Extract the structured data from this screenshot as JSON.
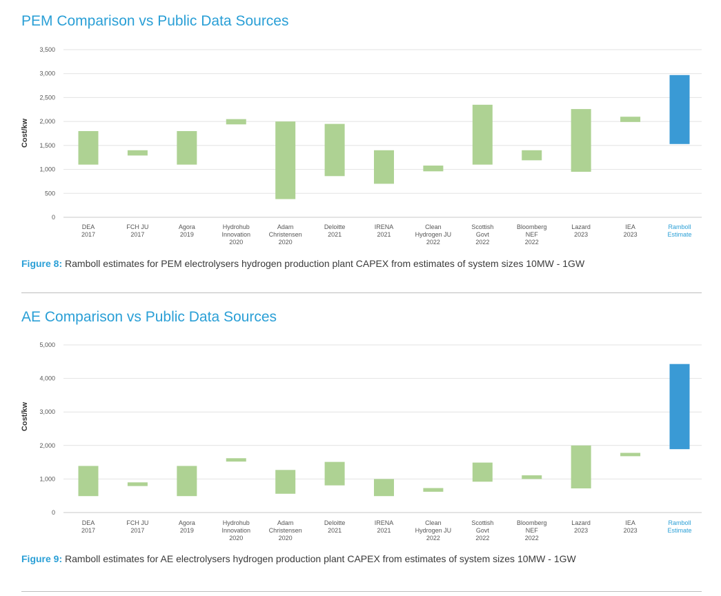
{
  "chart_data": [
    {
      "type": "bar",
      "title": "PEM Comparison vs Public Data Sources",
      "caption_label": "Figure 8:",
      "caption_text": " Ramboll estimates for PEM electrolysers hydrogen production plant CAPEX from estimates of system sizes 10MW - 1GW",
      "ylabel": "Cost/kw",
      "xlabel": "",
      "ylim": [
        0,
        3500
      ],
      "yticks": [
        "0",
        "500",
        "1,000",
        "1,500",
        "2,000",
        "2,500",
        "3,000",
        "3,500"
      ],
      "ytick_values": [
        0,
        500,
        1000,
        1500,
        2000,
        2500,
        3000,
        3500
      ],
      "grid": true,
      "categories": [
        [
          "DEA",
          "2017"
        ],
        [
          "FCH JU",
          "2017"
        ],
        [
          "Agora",
          "2019"
        ],
        [
          "Hydrohub",
          "Innovation",
          "2020"
        ],
        [
          "Adam",
          "Christensen",
          "2020"
        ],
        [
          "Deloitte",
          "2021"
        ],
        [
          "IRENA",
          "2021"
        ],
        [
          "Clean",
          "Hydrogen JU",
          "2022"
        ],
        [
          "Scottish",
          "Govt",
          "2022"
        ],
        [
          "Bloomberg",
          "NEF",
          "2022"
        ],
        [
          "Lazard",
          "2023"
        ],
        [
          "IEA",
          "2023"
        ],
        [
          "Ramboll",
          "Estimate"
        ]
      ],
      "ranges": [
        [
          1100,
          1800
        ],
        [
          1290,
          1400
        ],
        [
          1100,
          1800
        ],
        [
          1940,
          2050
        ],
        [
          380,
          2000
        ],
        [
          860,
          1950
        ],
        [
          700,
          1400
        ],
        [
          960,
          1080
        ],
        [
          1100,
          2350
        ],
        [
          1190,
          1400
        ],
        [
          950,
          2260
        ],
        [
          1990,
          2100
        ],
        [
          1530,
          2970
        ]
      ],
      "highlight_index": 12,
      "colors": {
        "bar": "#aed293",
        "highlight": "#3a9ad5",
        "highlight_text": "#2a9fd6"
      }
    },
    {
      "type": "bar",
      "title": "AE Comparison vs Public Data Sources",
      "caption_label": "Figure 9:",
      "caption_text": " Ramboll estimates for AE electrolysers hydrogen production plant CAPEX from estimates of system sizes 10MW - 1GW",
      "ylabel": "Cost/kw",
      "xlabel": "",
      "ylim": [
        0,
        5000
      ],
      "yticks": [
        "0",
        "1,000",
        "2,000",
        "3,000",
        "4,000",
        "5,000"
      ],
      "ytick_values": [
        0,
        1000,
        2000,
        3000,
        4000,
        5000
      ],
      "grid": true,
      "categories": [
        [
          "DEA",
          "2017"
        ],
        [
          "FCH JU",
          "2017"
        ],
        [
          "Agora",
          "2019"
        ],
        [
          "Hydrohub",
          "Innovation",
          "2020"
        ],
        [
          "Adam",
          "Christensen",
          "2020"
        ],
        [
          "Deloitte",
          "2021"
        ],
        [
          "IRENA",
          "2021"
        ],
        [
          "Clean",
          "Hydrogen JU",
          "2022"
        ],
        [
          "Scottish",
          "Govt",
          "2022"
        ],
        [
          "Bloomberg",
          "NEF",
          "2022"
        ],
        [
          "Lazard",
          "2023"
        ],
        [
          "IEA",
          "2023"
        ],
        [
          "Ramboll",
          "Estimate"
        ]
      ],
      "ranges": [
        [
          490,
          1390
        ],
        [
          790,
          900
        ],
        [
          490,
          1390
        ],
        [
          1520,
          1620
        ],
        [
          560,
          1270
        ],
        [
          810,
          1510
        ],
        [
          490,
          1000
        ],
        [
          620,
          730
        ],
        [
          920,
          1490
        ],
        [
          1000,
          1110
        ],
        [
          720,
          2000
        ],
        [
          1680,
          1780
        ],
        [
          1890,
          4430
        ]
      ],
      "highlight_index": 12,
      "colors": {
        "bar": "#aed293",
        "highlight": "#3a9ad5",
        "highlight_text": "#2a9fd6"
      }
    }
  ]
}
